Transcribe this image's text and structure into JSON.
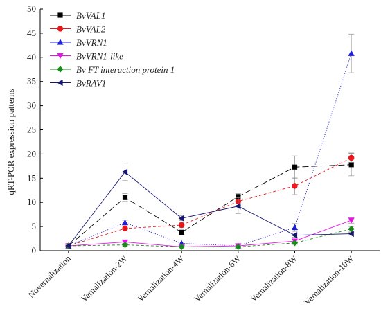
{
  "chart_data": {
    "type": "line",
    "title": "",
    "xlabel": "",
    "ylabel": "qRT-PCR expression patterns",
    "ylim": [
      0,
      50
    ],
    "yticks": [
      0,
      5,
      10,
      15,
      20,
      25,
      30,
      35,
      40,
      45,
      50
    ],
    "grid": false,
    "legend_position": "top-left",
    "categories": [
      "Novernalization",
      "Vernalization-2W",
      "Vernalization-4W",
      "Vernalization-6W",
      "Vernalization-8W",
      "Vernalization-10W"
    ],
    "series": [
      {
        "name": "BvVAL1",
        "marker": "square",
        "color": "#000000",
        "line_style": "long-dash",
        "values": [
          1.0,
          11.0,
          3.8,
          11.2,
          17.3,
          17.8
        ],
        "errors": [
          0.2,
          0.8,
          0.5,
          0.6,
          2.3,
          2.3
        ]
      },
      {
        "name": "BvVAL2",
        "marker": "circle",
        "color": "#e8151b",
        "line_style": "dash",
        "values": [
          1.0,
          4.6,
          5.3,
          10.2,
          13.4,
          19.2
        ],
        "errors": [
          0.2,
          0.5,
          0.5,
          0.8,
          1.8,
          1.0
        ]
      },
      {
        "name": "BvVRN1",
        "marker": "triangle-up",
        "color": "#1d1dd8",
        "line_style": "dot",
        "values": [
          1.0,
          5.8,
          1.5,
          1.0,
          4.8,
          40.8
        ],
        "errors": [
          0.2,
          0.5,
          0.3,
          0.2,
          0.8,
          4.0
        ]
      },
      {
        "name": "BvVRN1-like",
        "marker": "triangle-down",
        "color": "#e614e6",
        "line_style": "solid",
        "values": [
          1.0,
          1.8,
          0.8,
          1.0,
          2.0,
          6.3
        ],
        "errors": [
          0.1,
          0.3,
          0.2,
          0.2,
          0.4,
          0.6
        ]
      },
      {
        "name": "Bv FT interaction protein 1",
        "marker": "diamond",
        "color": "#1a8a1a",
        "line_style": "dash",
        "values": [
          1.0,
          1.2,
          0.8,
          0.8,
          1.6,
          4.5
        ],
        "errors": [
          0.1,
          0.3,
          0.2,
          0.2,
          0.3,
          0.5
        ]
      },
      {
        "name": "BvRAV1",
        "marker": "triangle-left",
        "color": "#16166e",
        "line_style": "solid",
        "values": [
          1.0,
          16.3,
          6.7,
          9.2,
          3.2,
          3.5
        ],
        "errors": [
          0.2,
          1.8,
          0.5,
          1.5,
          0.4,
          0.3
        ]
      }
    ]
  }
}
